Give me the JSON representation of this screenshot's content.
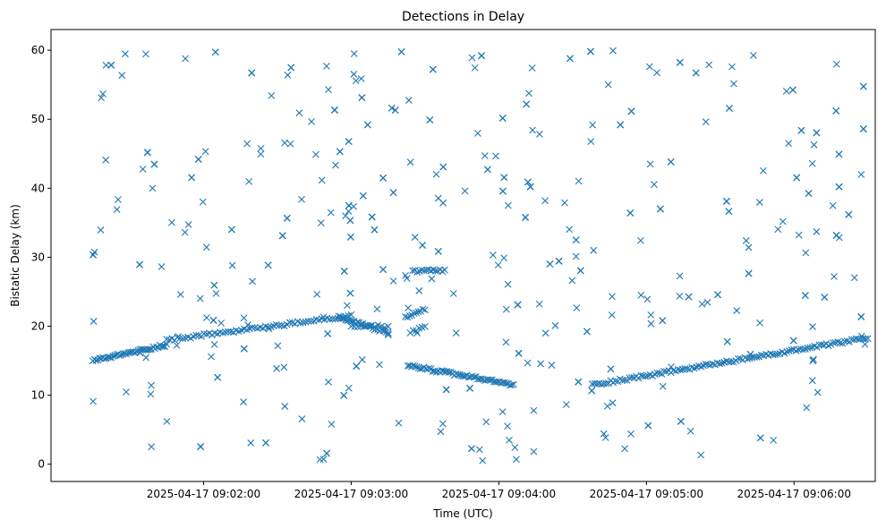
{
  "chart_data": {
    "type": "scatter",
    "title": "Detections in Delay",
    "xlabel": "Time (UTC)",
    "ylabel": "Bistatic Delay (km)",
    "x_axis": {
      "kind": "time",
      "range": [
        "2025-04-17 09:00:58",
        "2025-04-17 09:06:33"
      ],
      "ticks": [
        "2025-04-17 09:02:00",
        "2025-04-17 09:03:00",
        "2025-04-17 09:04:00",
        "2025-04-17 09:05:00",
        "2025-04-17 09:06:00"
      ]
    },
    "y_axis": {
      "range": [
        -2.5,
        63
      ],
      "ticks": [
        0,
        10,
        20,
        30,
        40,
        50,
        60
      ]
    },
    "grid": false,
    "marker": "x",
    "color": "#1f77b4",
    "track_series": [
      {
        "start": "2025-04-17 09:01:15",
        "end": "2025-04-17 09:01:45",
        "y_start": 15.0,
        "y_end": 17.3,
        "count": 45
      },
      {
        "start": "2025-04-17 09:01:45",
        "end": "2025-04-17 09:03:00",
        "y_start": 18.0,
        "y_end": 21.5,
        "count": 70
      },
      {
        "start": "2025-04-17 09:02:55",
        "end": "2025-04-17 09:03:15",
        "y_start": 21.3,
        "y_end": 19.0,
        "count": 30
      },
      {
        "start": "2025-04-17 09:03:00",
        "end": "2025-04-17 09:03:15",
        "y_start": 20.0,
        "y_end": 20.0,
        "count": 12
      },
      {
        "start": "2025-04-17 09:03:22",
        "end": "2025-04-17 09:03:30",
        "y_start": 21.3,
        "y_end": 22.5,
        "count": 10
      },
      {
        "start": "2025-04-17 09:03:24",
        "end": "2025-04-17 09:03:30",
        "y_start": 19.0,
        "y_end": 20.0,
        "count": 6
      },
      {
        "start": "2025-04-17 09:03:25",
        "end": "2025-04-17 09:03:38",
        "y_start": 28.0,
        "y_end": 28.0,
        "count": 15
      },
      {
        "start": "2025-04-17 09:03:23",
        "end": "2025-04-17 09:04:06",
        "y_start": 14.3,
        "y_end": 11.5,
        "count": 60
      },
      {
        "start": "2025-04-17 09:04:38",
        "end": "2025-04-17 09:06:30",
        "y_start": 11.5,
        "y_end": 18.3,
        "count": 120
      }
    ],
    "noise": {
      "count": 560,
      "time_range": [
        "2025-04-17 09:01:15",
        "2025-04-17 09:06:30"
      ],
      "y_range": [
        0.5,
        60
      ]
    }
  }
}
